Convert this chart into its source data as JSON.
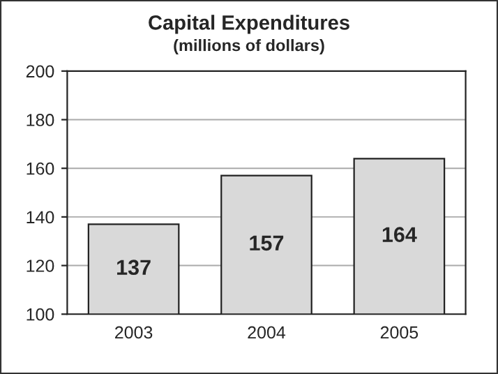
{
  "chart_data": {
    "type": "bar",
    "title": "Capital Expenditures",
    "subtitle": "(millions of dollars)",
    "categories": [
      "2003",
      "2004",
      "2005"
    ],
    "values": [
      137,
      157,
      164
    ],
    "color": "#d9d9d9",
    "ylim": [
      100,
      200
    ],
    "yticks": [
      100,
      120,
      140,
      160,
      180,
      200
    ],
    "grid": "y",
    "data_labels": true
  }
}
